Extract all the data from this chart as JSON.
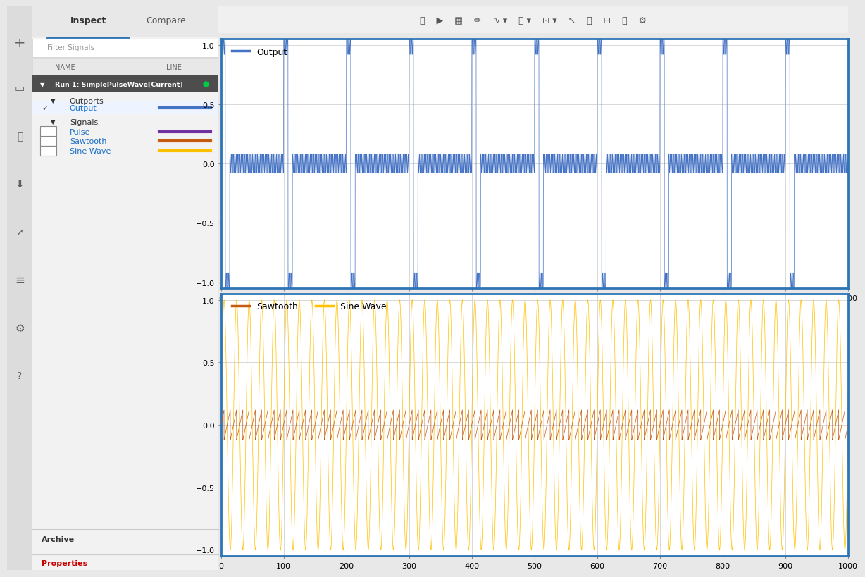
{
  "fig_width": 12.0,
  "fig_height": 8.0,
  "output_color": "#4472C4",
  "sawtooth_color": "#C55A11",
  "sine_wave_color": "#FFC000",
  "pulse_color": "#7030A0",
  "xlim": [
    0,
    1000
  ],
  "ylim": [
    -1.05,
    1.05
  ],
  "x_ticks": [
    0,
    100,
    200,
    300,
    400,
    500,
    600,
    700,
    800,
    900,
    1000
  ],
  "y_ticks": [
    -1.0,
    -0.5,
    0,
    0.5,
    1.0
  ],
  "sidebar_bg": "#F2F2F2",
  "plot_area_bg": "#FFFFFF",
  "grid_color": "#D8D8D8",
  "border_color": "#2E75B6",
  "toolbar_bg": "#F0F0F0",
  "icon_bar_bg": "#DCDCDC",
  "header_dark_bg": "#4D4D4D",
  "run1_text": "Run 1: SimplePulseWave[Current]",
  "inspect_text": "Inspect",
  "compare_text": "Compare",
  "filter_text": "Filter Signals",
  "name_col": "NAME",
  "line_col": "LINE",
  "outports_text": "Outports",
  "output_text": "Output",
  "signals_text": "Signals",
  "pulse_text": "Pulse",
  "sawtooth_text": "Sawtooth",
  "sine_wave_text": "Sine Wave",
  "archive_text": "Archive",
  "properties_text": "Properties",
  "upper_legend": "Output",
  "lower_legend1": "Sawtooth",
  "lower_legend2": "Sine Wave",
  "n_points": 20000,
  "pulse_period": 100,
  "pulse_half_duty": 7,
  "output_osc_amp": 0.08,
  "output_osc_freq": 0.5,
  "sine_freq_lower": 0.05,
  "sawtooth_small_amp": 0.12,
  "sawtooth_period": 10.0
}
